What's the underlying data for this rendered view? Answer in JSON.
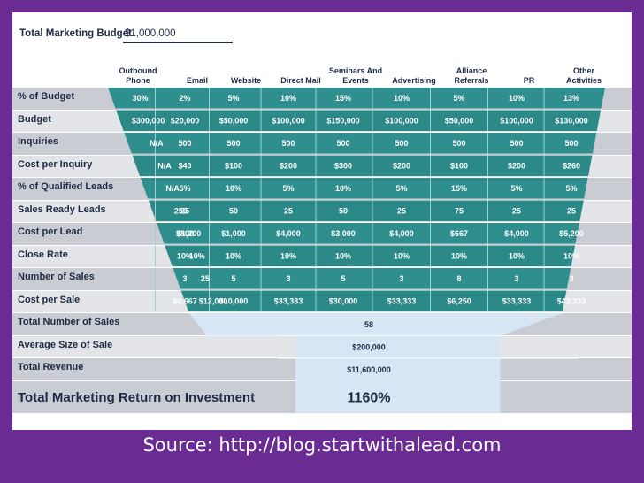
{
  "budget": {
    "label": "Total Marketing Budget",
    "value": "$1,000,000"
  },
  "columns": [
    [
      "Outbound",
      "Phone"
    ],
    [
      "Email"
    ],
    [
      "Website"
    ],
    [
      "Direct Mail"
    ],
    [
      "Seminars And",
      "Events"
    ],
    [
      "Advertising"
    ],
    [
      "Alliance",
      "Referrals"
    ],
    [
      "PR"
    ],
    [
      "Other",
      "Activities"
    ]
  ],
  "rows": [
    {
      "label": "% of Budget",
      "values": [
        "30%",
        "2%",
        "5%",
        "10%",
        "15%",
        "10%",
        "5%",
        "10%",
        "13%"
      ]
    },
    {
      "label": "Budget",
      "values": [
        "$300,000",
        "$20,000",
        "$50,000",
        "$100,000",
        "$150,000",
        "$100,000",
        "$50,000",
        "$100,000",
        "$130,000"
      ]
    },
    {
      "label": "Inquiries",
      "values": [
        "N/A",
        "500",
        "500",
        "500",
        "500",
        "500",
        "500",
        "500",
        "500"
      ]
    },
    {
      "label": "Cost per Inquiry",
      "values": [
        "N/A",
        "$40",
        "$100",
        "$200",
        "$300",
        "$200",
        "$100",
        "$200",
        "$260"
      ]
    },
    {
      "label": "% of Qualified Leads",
      "values": [
        "N/A",
        "5%",
        "10%",
        "5%",
        "10%",
        "5%",
        "15%",
        "5%",
        "5%"
      ]
    },
    {
      "label": "Sales Ready Leads",
      "values": [
        "250",
        "25",
        "50",
        "25",
        "50",
        "25",
        "75",
        "25",
        "25"
      ]
    },
    {
      "label": "Cost per Lead",
      "values": [
        "$1,200",
        "$800",
        "$1,000",
        "$4,000",
        "$3,000",
        "$4,000",
        "$667",
        "$4,000",
        "$5,200"
      ]
    },
    {
      "label": "Close Rate",
      "values": [
        "10%",
        "10%",
        "10%",
        "10%",
        "10%",
        "10%",
        "10%",
        "10%",
        "10%"
      ]
    },
    {
      "label": "Number of Sales",
      "values": [
        "25",
        "3",
        "5",
        "3",
        "5",
        "3",
        "8",
        "3",
        "3"
      ]
    },
    {
      "label": "Cost per Sale",
      "values": [
        "$12,000",
        "$6,667",
        "$10,000",
        "$33,333",
        "$30,000",
        "$33,333",
        "$6,250",
        "$33,333",
        "$43,333"
      ]
    }
  ],
  "totals": [
    {
      "label": "Total Number of Sales",
      "value": "58"
    },
    {
      "label": "Average Size of Sale",
      "value": "$200,000"
    },
    {
      "label": "Total Revenue",
      "value": "$11,600,000"
    }
  ],
  "roi": {
    "label": "Total Marketing Return on Investment",
    "value": "1160%"
  },
  "source": "Source: http://blog.startwithalead.com",
  "colors": {
    "frame": "#6a2c93",
    "teal": "#2e8f8f",
    "funnelLight": "#d6e6f4",
    "labelText": "#1f2a44"
  }
}
